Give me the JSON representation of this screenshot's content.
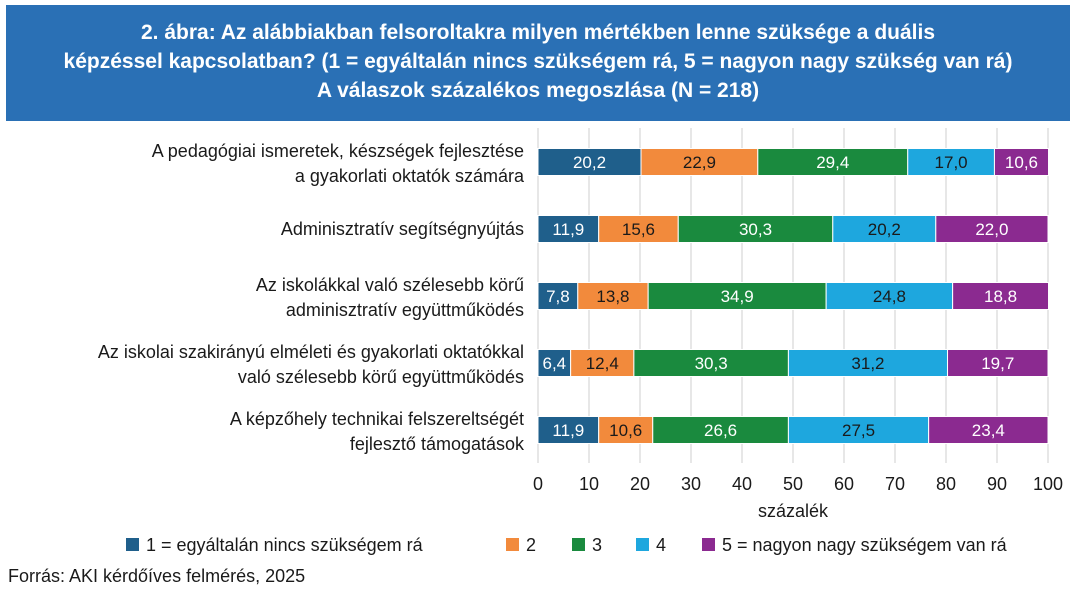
{
  "header": {
    "title_lines": [
      "2. ábra: Az alábbiakban felsoroltakra milyen mértékben lenne szüksége a duális",
      "képzéssel kapcsolatban? (1 = egyáltalán nincs szükségem rá, 5 = nagyon nagy szükség van rá)",
      "A válaszok százalékos megoszlása (N = 218)"
    ]
  },
  "footer": {
    "source": "Forrás: AKI kérdőíves felmérés, 2025"
  },
  "chart_data": {
    "type": "bar",
    "orientation": "horizontal",
    "stacked": true,
    "categories": [
      [
        "A pedagógiai ismeretek, készségek fejlesztése",
        "a gyakorlati oktatók számára"
      ],
      [
        "Adminisztratív segítségnyújtás"
      ],
      [
        "Az iskolákkal való szélesebb körű",
        "adminisztratív együttműködés"
      ],
      [
        "Az iskolai szakirányú elméleti és gyakorlati oktatókkal",
        "való szélesebb körű együttműködés"
      ],
      [
        "A képzőhely technikai felszereltségét",
        "fejlesztő támogatások"
      ]
    ],
    "series": [
      {
        "name": "1 = egyáltalán nincs szükségem rá",
        "color": "#1f5f8b",
        "values": [
          20.2,
          11.9,
          7.8,
          6.4,
          11.9
        ],
        "labels": [
          "20,2",
          "11,9",
          "7,8",
          "6,4",
          "11,9"
        ]
      },
      {
        "name": "2",
        "color": "#f28a3c",
        "values": [
          22.9,
          15.6,
          13.8,
          12.4,
          10.6
        ],
        "labels": [
          "22,9",
          "15,6",
          "13,8",
          "12,4",
          "10,6"
        ]
      },
      {
        "name": "3",
        "color": "#1a8a3e",
        "values": [
          29.4,
          30.3,
          34.9,
          30.3,
          26.6
        ],
        "labels": [
          "29,4",
          "30,3",
          "34,9",
          "30,3",
          "26,6"
        ]
      },
      {
        "name": "4",
        "color": "#1ea7de",
        "values": [
          17.0,
          20.2,
          24.8,
          31.2,
          27.5
        ],
        "labels": [
          "17,0",
          "20,2",
          "24,8",
          "31,2",
          "27,5"
        ]
      },
      {
        "name": "5 = nagyon nagy szükségem van rá",
        "color": "#8b2a90",
        "values": [
          10.6,
          22.0,
          18.8,
          19.7,
          23.4
        ],
        "labels": [
          "10,6",
          "22,0",
          "18,8",
          "19,7",
          "23,4"
        ]
      }
    ],
    "xlabel": "százalék",
    "xlim": [
      0,
      100
    ],
    "xticks": [
      "0",
      "10",
      "20",
      "30",
      "40",
      "50",
      "60",
      "70",
      "80",
      "90",
      "100"
    ],
    "grid": true,
    "legend": "bottom"
  }
}
